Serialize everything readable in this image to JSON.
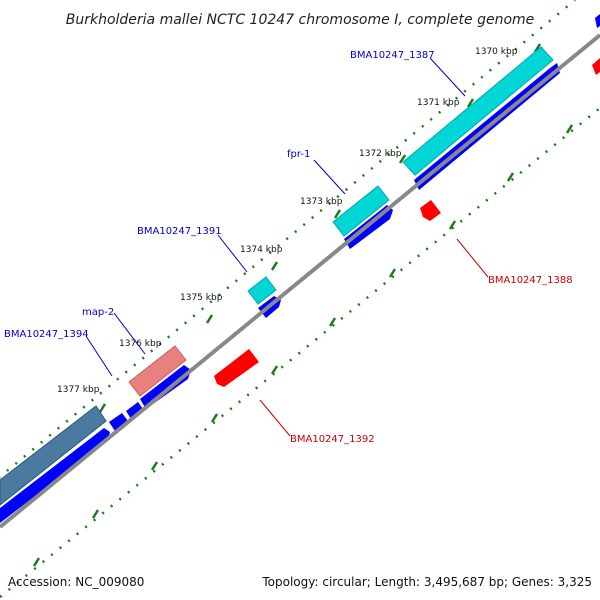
{
  "title": "Burkholderia mallei NCTC 10247 chromosome I, complete genome",
  "footer": {
    "accession": "Accession: NC_009080",
    "summary": "Topology: circular; Length: 3,495,687 bp; Genes: 3,325"
  },
  "ticks": [
    "1370 kbp",
    "1371 kbp",
    "1372 kbp",
    "1373 kbp",
    "1374 kbp",
    "1375 kbp",
    "1376 kbp",
    "1377 kbp"
  ],
  "genes": {
    "forward": [
      {
        "label": "BMA10247_1387"
      },
      {
        "label": "fpr-1"
      },
      {
        "label": "BMA10247_1391"
      },
      {
        "label": "map-2"
      },
      {
        "label": "BMA10247_1394"
      }
    ],
    "reverse": [
      {
        "label": "BMA10247_1388"
      },
      {
        "label": "BMA10247_1392"
      }
    ]
  },
  "colors": {
    "forward_label": "#0000cc",
    "reverse_label": "#cc0000",
    "cds_forward": "#0000ff",
    "cds_reverse": "#ff0000",
    "backbone": "#888888",
    "tick": "#1a7a1a",
    "gene_cyan": "#00d6d6",
    "gene_pink": "#e88080",
    "gene_steel": "#4a7aa0"
  }
}
